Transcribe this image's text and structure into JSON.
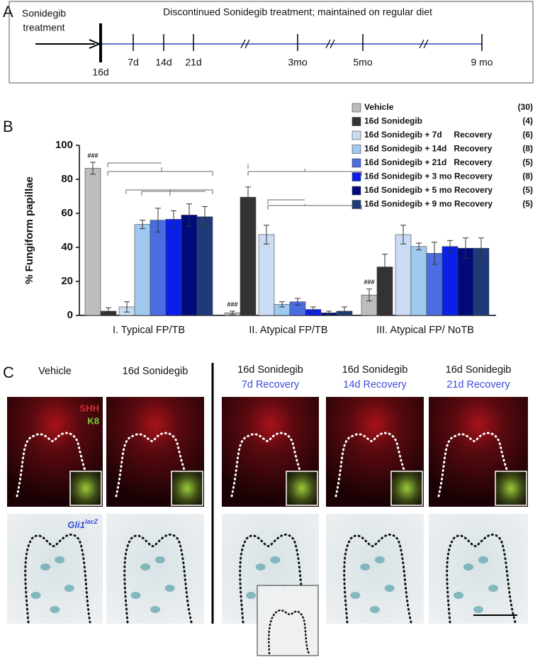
{
  "panel_labels": [
    "A",
    "B",
    "C"
  ],
  "timeline": {
    "pre_label": [
      "Sonidegib",
      "treatment"
    ],
    "header": "Discontinued Sonidegib treatment; maintained on regular diet",
    "start": "16d",
    "ticks": [
      "7d",
      "14d",
      "21d",
      "3mo",
      "5mo",
      "9 mo"
    ]
  },
  "chart_data": {
    "type": "bar",
    "ylabel": "% Fungiform papillae",
    "categories": [
      "I. Typical FP/TB",
      "II. Atypical FP/TB",
      "III. Atypical FP/ NoTB"
    ],
    "ylim": [
      0,
      100
    ],
    "yticks": [
      0,
      20,
      40,
      60,
      80,
      100
    ],
    "annotations": [
      "###",
      "###",
      "###"
    ],
    "series": [
      {
        "name": "Vehicle",
        "count": "(30)",
        "color": "#bdbdbd",
        "values": [
          86.5,
          1.5,
          12
        ],
        "errors": [
          3.5,
          1,
          3.5
        ]
      },
      {
        "name": "16d Sonidegib",
        "count": "(4)",
        "color": "#333333",
        "values": [
          2.5,
          69.5,
          28.5
        ],
        "errors": [
          2,
          6,
          7.5
        ]
      },
      {
        "name": "16d Sonidegib + 7d     Recovery",
        "count": "(6)",
        "color": "#c9dcf3",
        "values": [
          5,
          47.5,
          47.5
        ],
        "errors": [
          3,
          5.5,
          5.5
        ]
      },
      {
        "name": "16d Sonidegib + 14d   Recovery",
        "count": "(8)",
        "color": "#9fc9ef",
        "values": [
          53.5,
          6.5,
          40.5
        ],
        "errors": [
          2.5,
          1.5,
          2
        ]
      },
      {
        "name": "16d Sonidegib + 21d   Recovery",
        "count": "(5)",
        "color": "#4a6ee0",
        "values": [
          56,
          8,
          36.5
        ],
        "errors": [
          7,
          2,
          6.5
        ]
      },
      {
        "name": "16d Sonidegib + 3 mo Recovery",
        "count": "(8)",
        "color": "#0a1fe8",
        "values": [
          56.5,
          3.5,
          40.5
        ],
        "errors": [
          5,
          1.5,
          3.5
        ]
      },
      {
        "name": "16d Sonidegib + 5 mo Recovery",
        "count": "(5)",
        "color": "#000a7a",
        "values": [
          59,
          1.5,
          39.5
        ],
        "errors": [
          6.5,
          1,
          6
        ]
      },
      {
        "name": "16d Sonidegib + 9 mo Recovery",
        "count": "(5)",
        "color": "#1f3a78",
        "values": [
          58,
          2.5,
          39.5
        ],
        "errors": [
          6,
          2.5,
          6
        ]
      }
    ]
  },
  "panel_c": {
    "columns": [
      [
        "Vehicle"
      ],
      [
        "16d Sonidegib"
      ],
      [
        "16d Sonidegib",
        "7d Recovery"
      ],
      [
        "16d Sonidegib",
        "14d Recovery"
      ],
      [
        "16d Sonidegib",
        "21d Recovery"
      ]
    ],
    "stains": [
      "SHH",
      "K8"
    ],
    "gene": {
      "name": "Gli1",
      "superscript": "lacZ"
    }
  }
}
